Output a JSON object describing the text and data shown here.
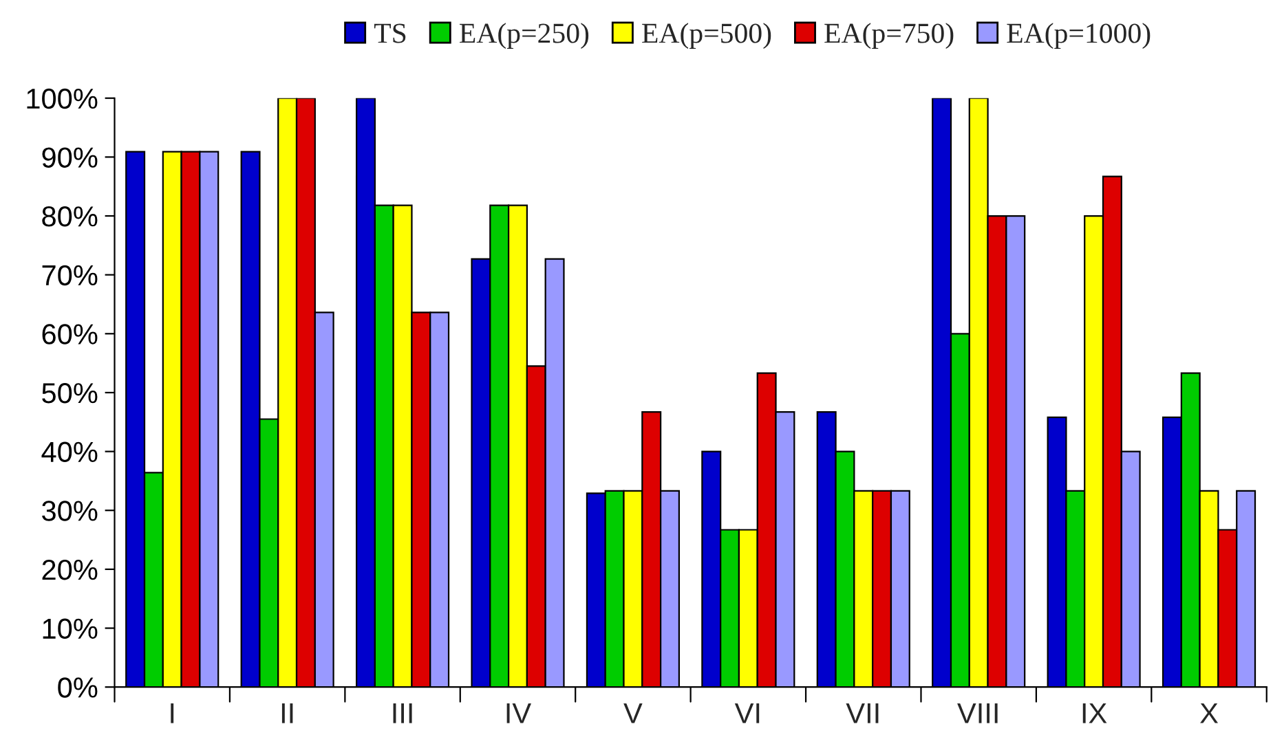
{
  "chart_data": {
    "type": "bar",
    "categories": [
      "I",
      "II",
      "III",
      "IV",
      "V",
      "VI",
      "VII",
      "VIII",
      "IX",
      "X"
    ],
    "series": [
      {
        "name": "TS",
        "color": "#0000cc",
        "values": [
          90.9,
          90.9,
          100,
          72.7,
          32.9,
          40,
          46.7,
          100,
          45.8,
          45.8
        ]
      },
      {
        "name": "EA(p=250)",
        "color": "#00cc00",
        "values": [
          36.4,
          45.5,
          81.8,
          81.8,
          33.3,
          26.7,
          40,
          60,
          33.3,
          53.3
        ]
      },
      {
        "name": "EA(p=500)",
        "color": "#ffff00",
        "values": [
          90.9,
          100,
          81.8,
          81.8,
          33.3,
          26.7,
          33.3,
          100,
          80,
          33.3
        ]
      },
      {
        "name": "EA(p=750)",
        "color": "#dd0000",
        "values": [
          90.9,
          100,
          63.6,
          54.5,
          46.7,
          53.3,
          33.3,
          80,
          86.7,
          26.7
        ]
      },
      {
        "name": "EA(p=1000)",
        "color": "#9999ff",
        "values": [
          90.9,
          63.6,
          63.6,
          72.7,
          33.3,
          46.7,
          33.3,
          80,
          40,
          33.3
        ]
      }
    ],
    "ylim": [
      0,
      100
    ],
    "yticks": [
      {
        "value": 0,
        "label": "0%"
      },
      {
        "value": 10,
        "label": "10%"
      },
      {
        "value": 20,
        "label": "20%"
      },
      {
        "value": 30,
        "label": "30%"
      },
      {
        "value": 40,
        "label": "40%"
      },
      {
        "value": 50,
        "label": "50%"
      },
      {
        "value": 60,
        "label": "60%"
      },
      {
        "value": 70,
        "label": "70%"
      },
      {
        "value": 80,
        "label": "80%"
      },
      {
        "value": 90,
        "label": "90%"
      },
      {
        "value": 100,
        "label": "100%"
      }
    ],
    "grid": false,
    "legend": "top"
  }
}
